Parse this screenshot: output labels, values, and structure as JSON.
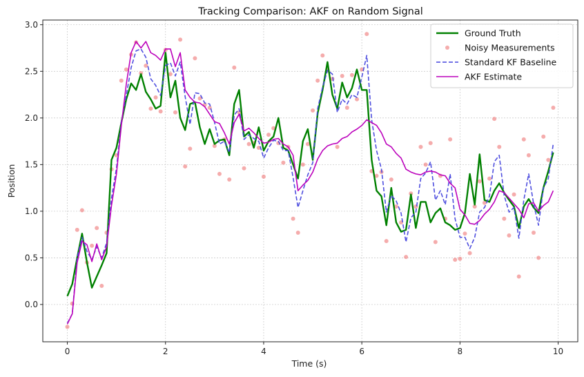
{
  "chart_data": {
    "type": "line",
    "title": "Tracking Comparison: AKF on Random Signal",
    "xlabel": "Time (s)",
    "ylabel": "Position",
    "xlim": [
      -0.5,
      10.4
    ],
    "ylim": [
      -0.4,
      3.05
    ],
    "xticks": [
      0,
      2,
      4,
      6,
      8,
      10
    ],
    "yticks": [
      0.0,
      0.5,
      1.0,
      1.5,
      2.0,
      2.5,
      3.0
    ],
    "xtick_labels": [
      "0",
      "2",
      "4",
      "6",
      "8",
      "10"
    ],
    "ytick_labels": [
      "0.0",
      "0.5",
      "1.0",
      "1.5",
      "2.0",
      "2.5",
      "3.0"
    ],
    "grid": true,
    "legend_position": "top-right",
    "x": [
      0.0,
      0.1,
      0.2,
      0.3,
      0.4,
      0.5,
      0.6,
      0.7,
      0.8,
      0.9,
      1.0,
      1.1,
      1.2,
      1.3,
      1.4,
      1.5,
      1.6,
      1.7,
      1.8,
      1.9,
      2.0,
      2.1,
      2.2,
      2.3,
      2.4,
      2.5,
      2.6,
      2.7,
      2.8,
      2.9,
      3.0,
      3.1,
      3.2,
      3.3,
      3.4,
      3.5,
      3.6,
      3.7,
      3.8,
      3.9,
      4.0,
      4.1,
      4.2,
      4.3,
      4.4,
      4.5,
      4.6,
      4.7,
      4.8,
      4.9,
      5.0,
      5.1,
      5.2,
      5.3,
      5.4,
      5.5,
      5.6,
      5.7,
      5.8,
      5.9,
      6.0,
      6.1,
      6.2,
      6.3,
      6.4,
      6.5,
      6.6,
      6.7,
      6.8,
      6.9,
      7.0,
      7.1,
      7.2,
      7.3,
      7.4,
      7.5,
      7.6,
      7.7,
      7.8,
      7.9,
      8.0,
      8.1,
      8.2,
      8.3,
      8.4,
      8.5,
      8.6,
      8.7,
      8.8,
      8.9,
      9.0,
      9.1,
      9.2,
      9.3,
      9.4,
      9.5,
      9.6,
      9.7,
      9.8,
      9.9
    ],
    "series": [
      {
        "name": "Ground Truth",
        "kind": "line",
        "color": "#008000",
        "dash": "solid",
        "values": [
          0.09,
          0.22,
          0.5,
          0.76,
          0.45,
          0.18,
          0.3,
          0.42,
          0.55,
          1.55,
          1.68,
          1.95,
          2.2,
          2.37,
          2.3,
          2.47,
          2.28,
          2.2,
          2.1,
          2.13,
          2.7,
          2.22,
          2.4,
          2.0,
          1.87,
          2.15,
          2.17,
          1.9,
          1.72,
          1.88,
          1.72,
          1.76,
          1.77,
          1.6,
          2.15,
          2.3,
          1.8,
          1.85,
          1.68,
          1.9,
          1.65,
          1.75,
          1.8,
          2.0,
          1.68,
          1.65,
          1.5,
          1.35,
          1.75,
          1.88,
          1.55,
          2.05,
          2.3,
          2.6,
          2.25,
          2.1,
          2.38,
          2.22,
          2.32,
          2.52,
          2.3,
          2.3,
          1.55,
          1.22,
          1.16,
          0.85,
          1.25,
          0.88,
          0.78,
          0.8,
          1.18,
          0.82,
          1.1,
          1.1,
          0.88,
          0.98,
          1.03,
          0.88,
          0.85,
          0.8,
          0.82,
          0.98,
          1.4,
          1.07,
          1.61,
          1.12,
          1.1,
          1.22,
          1.3,
          1.2,
          1.12,
          1.05,
          0.82,
          1.05,
          1.13,
          1.04,
          0.98,
          1.25,
          1.43,
          1.63
        ]
      },
      {
        "name": "Noisy Measurements",
        "kind": "scatter",
        "color": "#f08080",
        "values": [
          -0.24,
          0.01,
          0.8,
          1.01,
          0.45,
          0.63,
          0.82,
          0.2,
          0.77,
          1.45,
          1.6,
          2.4,
          2.52,
          2.68,
          2.81,
          2.48,
          2.56,
          2.1,
          2.22,
          2.07,
          2.73,
          2.47,
          2.06,
          2.84,
          1.48,
          1.67,
          2.64,
          2.21,
          2.14,
          2.11,
          1.7,
          1.4,
          1.77,
          1.34,
          2.54,
          2.06,
          1.46,
          1.72,
          1.73,
          1.68,
          1.37,
          1.82,
          1.89,
          1.73,
          1.52,
          1.69,
          0.92,
          0.77,
          1.5,
          1.72,
          2.08,
          2.4,
          2.67,
          2.51,
          2.42,
          1.69,
          2.45,
          2.11,
          2.46,
          2.2,
          2.52,
          2.9,
          1.43,
          1.38,
          1.42,
          0.68,
          1.34,
          1.05,
          0.88,
          0.51,
          1.19,
          1.05,
          1.69,
          1.5,
          1.73,
          0.67,
          1.38,
          0.92,
          1.77,
          0.48,
          0.49,
          0.76,
          0.55,
          1.05,
          1.32,
          1.09,
          1.35,
          1.99,
          1.69,
          0.92,
          0.74,
          1.18,
          0.3,
          1.77,
          1.6,
          0.77,
          0.5,
          1.8,
          1.55,
          2.11
        ]
      },
      {
        "name": "Standard KF Baseline",
        "kind": "line",
        "color": "#4444dd",
        "dash": "dashed",
        "values": [
          -0.2,
          -0.1,
          0.5,
          0.72,
          0.57,
          0.48,
          0.62,
          0.5,
          0.66,
          1.14,
          1.46,
          1.96,
          2.24,
          2.54,
          2.72,
          2.74,
          2.65,
          2.42,
          2.35,
          2.24,
          2.56,
          2.59,
          2.45,
          2.6,
          2.23,
          1.93,
          2.27,
          2.26,
          2.16,
          2.15,
          1.95,
          1.72,
          1.75,
          1.63,
          2.03,
          2.1,
          1.77,
          1.82,
          1.78,
          1.75,
          1.57,
          1.68,
          1.76,
          1.75,
          1.65,
          1.65,
          1.36,
          1.04,
          1.22,
          1.39,
          1.52,
          2.1,
          2.33,
          2.51,
          2.47,
          2.06,
          2.2,
          2.15,
          2.25,
          2.22,
          2.44,
          2.67,
          1.98,
          1.65,
          1.45,
          0.99,
          1.17,
          1.11,
          0.98,
          0.67,
          0.93,
          0.99,
          1.35,
          1.41,
          1.53,
          1.12,
          1.22,
          1.07,
          1.4,
          0.92,
          0.72,
          0.72,
          0.6,
          0.72,
          0.99,
          1.04,
          1.16,
          1.53,
          1.6,
          1.17,
          0.99,
          1.04,
          0.71,
          1.12,
          1.4,
          1.08,
          0.85,
          1.25,
          1.35,
          1.72
        ]
      },
      {
        "name": "AKF Estimate",
        "kind": "line",
        "color": "#bb00bb",
        "dash": "solid",
        "values": [
          -0.21,
          -0.1,
          0.45,
          0.68,
          0.64,
          0.46,
          0.65,
          0.48,
          0.62,
          1.06,
          1.4,
          1.92,
          2.36,
          2.7,
          2.82,
          2.75,
          2.82,
          2.7,
          2.67,
          2.62,
          2.74,
          2.74,
          2.55,
          2.7,
          2.3,
          2.22,
          2.17,
          2.16,
          2.12,
          2.04,
          1.96,
          1.94,
          1.84,
          1.72,
          1.95,
          2.04,
          1.86,
          1.89,
          1.84,
          1.78,
          1.73,
          1.74,
          1.77,
          1.78,
          1.72,
          1.69,
          1.6,
          1.22,
          1.28,
          1.33,
          1.42,
          1.56,
          1.65,
          1.7,
          1.72,
          1.73,
          1.78,
          1.8,
          1.85,
          1.88,
          1.92,
          1.98,
          1.95,
          1.92,
          1.84,
          1.72,
          1.69,
          1.62,
          1.57,
          1.45,
          1.42,
          1.4,
          1.39,
          1.42,
          1.43,
          1.42,
          1.39,
          1.38,
          1.3,
          1.25,
          1.02,
          0.96,
          0.87,
          0.86,
          0.9,
          0.97,
          1.02,
          1.1,
          1.22,
          1.2,
          1.14,
          1.08,
          1.02,
          0.93,
          1.08,
          1.09,
          1.0,
          1.06,
          1.1,
          1.22
        ]
      }
    ]
  }
}
